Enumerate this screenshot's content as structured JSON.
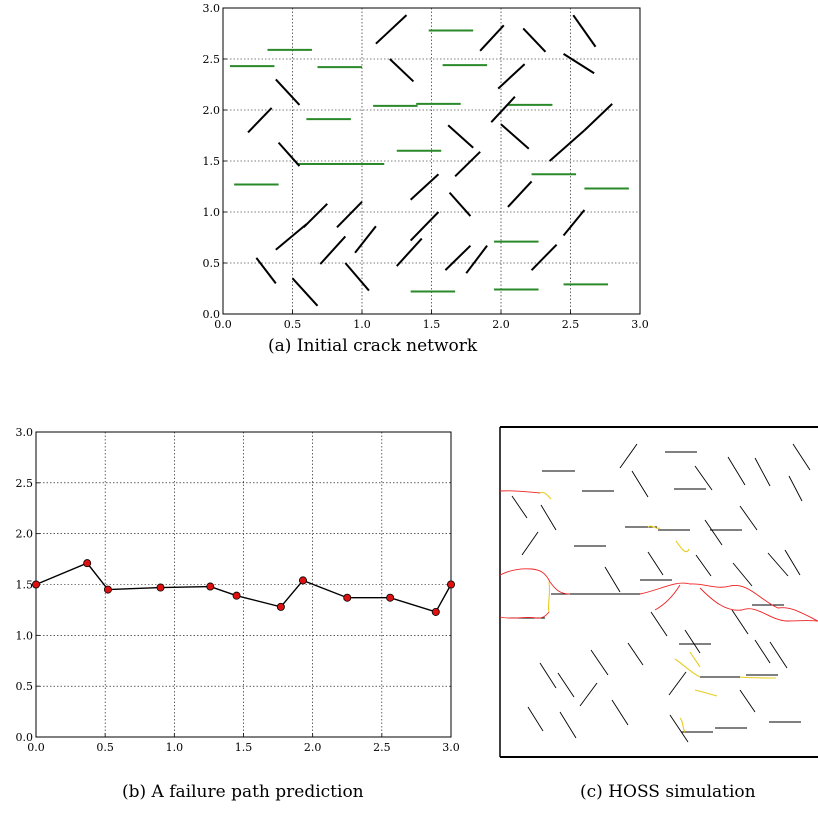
{
  "captions": {
    "a": "(a) Initial crack network",
    "b": "(b) A failure path prediction",
    "c": "(c) HOSS simulation"
  },
  "chart_data": [
    {
      "id": "a",
      "type": "scatter",
      "title": "",
      "xlabel": "",
      "ylabel": "",
      "xlim": [
        0,
        3
      ],
      "ylim": [
        0,
        3
      ],
      "xticks": [
        "0.0",
        "0.5",
        "1.0",
        "1.5",
        "2.0",
        "2.5",
        "3.0"
      ],
      "yticks": [
        "0.0",
        "0.5",
        "1.0",
        "1.5",
        "2.0",
        "2.5",
        "3.0"
      ],
      "grid": true,
      "colors": {
        "horizontal": "#2a8a2a",
        "inclined": "#000000"
      },
      "horizontal_cracks": [
        [
          0.05,
          2.43,
          0.37,
          2.43
        ],
        [
          0.32,
          2.59,
          0.64,
          2.59
        ],
        [
          0.68,
          2.42,
          1.0,
          2.42
        ],
        [
          1.48,
          2.78,
          1.8,
          2.78
        ],
        [
          1.58,
          2.44,
          1.9,
          2.44
        ],
        [
          1.08,
          2.04,
          1.4,
          2.04
        ],
        [
          1.39,
          2.06,
          1.71,
          2.06
        ],
        [
          2.05,
          2.05,
          2.37,
          2.05
        ],
        [
          0.6,
          1.91,
          0.92,
          1.91
        ],
        [
          1.25,
          1.6,
          1.57,
          1.6
        ],
        [
          0.53,
          1.47,
          0.85,
          1.47
        ],
        [
          0.84,
          1.47,
          1.16,
          1.47
        ],
        [
          0.08,
          1.27,
          0.4,
          1.27
        ],
        [
          2.22,
          1.37,
          2.54,
          1.37
        ],
        [
          2.6,
          1.23,
          2.92,
          1.23
        ],
        [
          1.95,
          0.71,
          2.27,
          0.71
        ],
        [
          1.35,
          0.22,
          1.67,
          0.22
        ],
        [
          1.95,
          0.24,
          2.27,
          0.24
        ],
        [
          2.45,
          0.29,
          2.77,
          0.29
        ]
      ],
      "inclined_cracks": [
        [
          1.1,
          2.65,
          1.32,
          2.93
        ],
        [
          1.85,
          2.58,
          2.02,
          2.83
        ],
        [
          2.16,
          2.8,
          2.32,
          2.57
        ],
        [
          2.52,
          2.93,
          2.68,
          2.62
        ],
        [
          2.45,
          2.55,
          2.67,
          2.36
        ],
        [
          1.2,
          2.5,
          1.37,
          2.28
        ],
        [
          0.38,
          2.3,
          0.55,
          2.05
        ],
        [
          1.98,
          2.21,
          2.17,
          2.45
        ],
        [
          0.18,
          1.78,
          0.35,
          2.02
        ],
        [
          1.93,
          1.88,
          2.1,
          2.13
        ],
        [
          1.62,
          1.85,
          1.8,
          1.63
        ],
        [
          2.0,
          1.86,
          2.2,
          1.62
        ],
        [
          0.4,
          1.68,
          0.55,
          1.45
        ],
        [
          2.35,
          1.5,
          2.6,
          1.8
        ],
        [
          2.6,
          1.8,
          2.8,
          2.06
        ],
        [
          1.35,
          1.12,
          1.55,
          1.37
        ],
        [
          1.67,
          1.35,
          1.85,
          1.59
        ],
        [
          1.63,
          1.19,
          1.78,
          0.96
        ],
        [
          2.05,
          1.05,
          2.22,
          1.3
        ],
        [
          0.58,
          0.85,
          0.75,
          1.08
        ],
        [
          0.82,
          0.85,
          1.0,
          1.1
        ],
        [
          0.95,
          0.6,
          1.1,
          0.86
        ],
        [
          2.45,
          0.77,
          2.6,
          1.02
        ],
        [
          1.35,
          0.72,
          1.55,
          1.0
        ],
        [
          1.25,
          0.47,
          1.43,
          0.74
        ],
        [
          1.75,
          0.4,
          1.9,
          0.67
        ],
        [
          0.38,
          0.63,
          0.6,
          0.88
        ],
        [
          0.7,
          0.49,
          0.88,
          0.76
        ],
        [
          0.24,
          0.55,
          0.38,
          0.3
        ],
        [
          0.5,
          0.35,
          0.68,
          0.08
        ],
        [
          0.88,
          0.5,
          1.05,
          0.23
        ],
        [
          1.6,
          0.43,
          1.78,
          0.67
        ],
        [
          2.22,
          0.43,
          2.4,
          0.68
        ]
      ]
    },
    {
      "id": "b",
      "type": "line",
      "title": "",
      "xlabel": "",
      "ylabel": "",
      "xlim": [
        0,
        3
      ],
      "ylim": [
        0,
        3
      ],
      "xticks": [
        "0.0",
        "0.5",
        "1.0",
        "1.5",
        "2.0",
        "2.5",
        "3.0"
      ],
      "yticks": [
        "0.0",
        "0.5",
        "1.0",
        "1.5",
        "2.0",
        "2.5",
        "3.0"
      ],
      "grid": true,
      "colors": {
        "line": "#000000",
        "marker": "#dd1111"
      },
      "x": [
        0.0,
        0.37,
        0.52,
        0.9,
        1.26,
        1.45,
        1.77,
        1.93,
        2.25,
        2.56,
        2.89,
        3.0
      ],
      "y": [
        1.5,
        1.71,
        1.45,
        1.47,
        1.48,
        1.39,
        1.28,
        1.54,
        1.37,
        1.37,
        1.23,
        1.5
      ]
    }
  ],
  "hoss": {
    "colors": {
      "crack": "#000000",
      "damage": "#ee2222",
      "partial": "#e8cc22"
    }
  }
}
